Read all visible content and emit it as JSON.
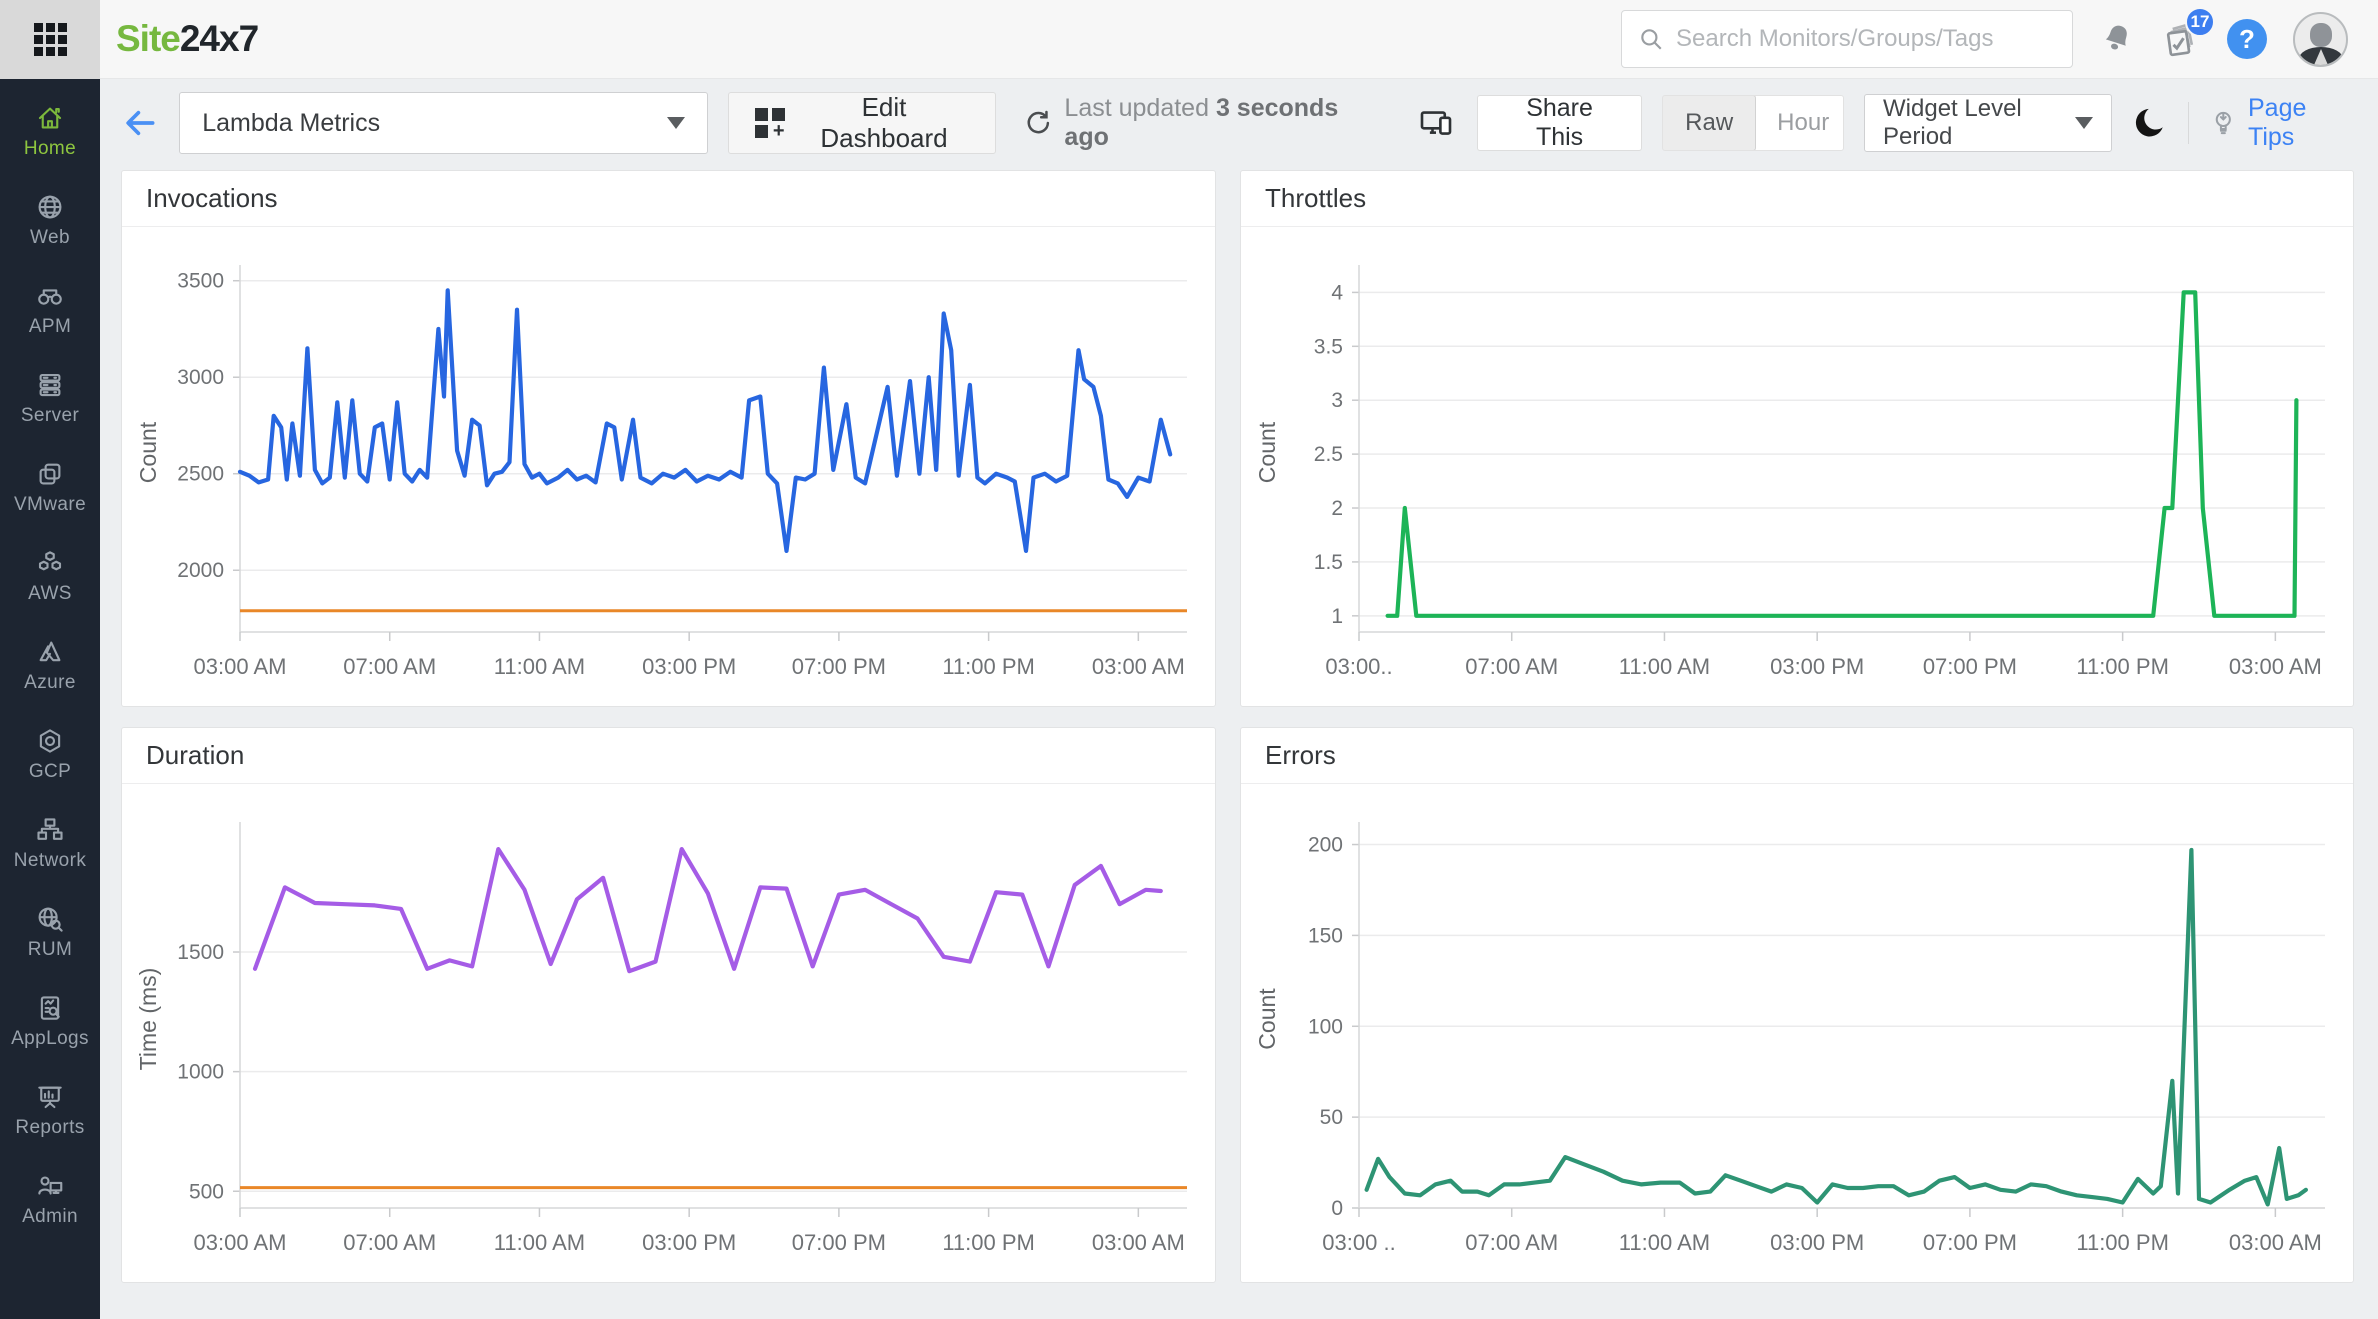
{
  "app": {
    "logo_prefix": "Site",
    "logo_suffix": "24x7"
  },
  "topbar": {
    "search_placeholder": "Search Monitors/Groups/Tags",
    "notification_count": "17",
    "help_label": "?"
  },
  "sidebar": {
    "items": [
      {
        "label": "Home",
        "icon": "home-icon",
        "active": true
      },
      {
        "label": "Web",
        "icon": "globe-icon",
        "active": false
      },
      {
        "label": "APM",
        "icon": "binoculars-icon",
        "active": false
      },
      {
        "label": "Server",
        "icon": "server-icon",
        "active": false
      },
      {
        "label": "VMware",
        "icon": "vmware-icon",
        "active": false
      },
      {
        "label": "AWS",
        "icon": "aws-cubes-icon",
        "active": false
      },
      {
        "label": "Azure",
        "icon": "azure-icon",
        "active": false
      },
      {
        "label": "GCP",
        "icon": "gcp-icon",
        "active": false
      },
      {
        "label": "Network",
        "icon": "network-icon",
        "active": false
      },
      {
        "label": "RUM",
        "icon": "rum-globe-search-icon",
        "active": false
      },
      {
        "label": "AppLogs",
        "icon": "applogs-icon",
        "active": false
      },
      {
        "label": "Reports",
        "icon": "reports-icon",
        "active": false
      },
      {
        "label": "Admin",
        "icon": "admin-icon",
        "active": false
      }
    ]
  },
  "toolbar": {
    "dashboard_name": "Lambda Metrics",
    "edit_button": "Edit Dashboard",
    "last_updated_prefix": "Last updated",
    "last_updated_value": "3 seconds ago",
    "share_button": "Share This",
    "granularity_options": [
      "Raw",
      "Hour"
    ],
    "granularity_selected": "Raw",
    "period_dropdown": "Widget Level Period",
    "page_tips": "Page Tips"
  },
  "colors": {
    "invocations_line": "#2766e0",
    "throttles_line": "#1db457",
    "duration_line": "#a55ce6",
    "errors_line": "#2e9474",
    "threshold_line": "#e98728",
    "sidebar_bg": "#1d2531",
    "accent_green": "#76b83f",
    "link_blue": "#3c82f4"
  },
  "chart_data": [
    {
      "type": "line",
      "title": "Invocations",
      "ylabel": "Count",
      "color": "#2766e0",
      "threshold": 1790,
      "threshold_color": "#e98728",
      "ylim": [
        1680,
        3540
      ],
      "yticks": [
        2000,
        2500,
        3000,
        3500
      ],
      "xlim": [
        0,
        25.3
      ],
      "xticks": [
        {
          "h": 0,
          "label": "03:00 AM"
        },
        {
          "h": 4,
          "label": "07:00 AM"
        },
        {
          "h": 8,
          "label": "11:00 AM"
        },
        {
          "h": 12,
          "label": "03:00 PM"
        },
        {
          "h": 16,
          "label": "07:00 PM"
        },
        {
          "h": 20,
          "label": "11:00 PM"
        },
        {
          "h": 24,
          "label": "03:00 AM"
        }
      ],
      "points": [
        [
          0,
          2510
        ],
        [
          0.25,
          2490
        ],
        [
          0.5,
          2455
        ],
        [
          0.75,
          2470
        ],
        [
          0.9,
          2800
        ],
        [
          1.1,
          2740
        ],
        [
          1.25,
          2470
        ],
        [
          1.4,
          2760
        ],
        [
          1.6,
          2490
        ],
        [
          1.8,
          3150
        ],
        [
          2,
          2520
        ],
        [
          2.2,
          2450
        ],
        [
          2.4,
          2480
        ],
        [
          2.6,
          2870
        ],
        [
          2.8,
          2480
        ],
        [
          3,
          2880
        ],
        [
          3.2,
          2500
        ],
        [
          3.4,
          2460
        ],
        [
          3.6,
          2740
        ],
        [
          3.8,
          2760
        ],
        [
          4,
          2470
        ],
        [
          4.2,
          2870
        ],
        [
          4.4,
          2500
        ],
        [
          4.6,
          2460
        ],
        [
          4.8,
          2520
        ],
        [
          5,
          2480
        ],
        [
          5.3,
          3250
        ],
        [
          5.45,
          2900
        ],
        [
          5.55,
          3450
        ],
        [
          5.8,
          2620
        ],
        [
          6,
          2490
        ],
        [
          6.2,
          2780
        ],
        [
          6.4,
          2750
        ],
        [
          6.6,
          2440
        ],
        [
          6.8,
          2500
        ],
        [
          7,
          2510
        ],
        [
          7.2,
          2560
        ],
        [
          7.4,
          3350
        ],
        [
          7.6,
          2550
        ],
        [
          7.8,
          2480
        ],
        [
          8,
          2500
        ],
        [
          8.2,
          2450
        ],
        [
          8.5,
          2480
        ],
        [
          8.75,
          2520
        ],
        [
          9,
          2470
        ],
        [
          9.25,
          2490
        ],
        [
          9.5,
          2455
        ],
        [
          9.8,
          2760
        ],
        [
          10,
          2740
        ],
        [
          10.2,
          2470
        ],
        [
          10.5,
          2780
        ],
        [
          10.7,
          2480
        ],
        [
          11,
          2450
        ],
        [
          11.3,
          2500
        ],
        [
          11.6,
          2480
        ],
        [
          11.9,
          2520
        ],
        [
          12.2,
          2460
        ],
        [
          12.5,
          2490
        ],
        [
          12.8,
          2470
        ],
        [
          13.1,
          2510
        ],
        [
          13.4,
          2480
        ],
        [
          13.6,
          2880
        ],
        [
          13.9,
          2900
        ],
        [
          14.1,
          2500
        ],
        [
          14.35,
          2450
        ],
        [
          14.6,
          2100
        ],
        [
          14.85,
          2480
        ],
        [
          15.1,
          2470
        ],
        [
          15.35,
          2500
        ],
        [
          15.6,
          3050
        ],
        [
          15.85,
          2520
        ],
        [
          16.2,
          2860
        ],
        [
          16.45,
          2480
        ],
        [
          16.7,
          2450
        ],
        [
          17,
          2700
        ],
        [
          17.3,
          2950
        ],
        [
          17.55,
          2490
        ],
        [
          17.9,
          2980
        ],
        [
          18.15,
          2500
        ],
        [
          18.4,
          3000
        ],
        [
          18.6,
          2520
        ],
        [
          18.8,
          3330
        ],
        [
          19,
          3140
        ],
        [
          19.2,
          2490
        ],
        [
          19.5,
          2960
        ],
        [
          19.7,
          2480
        ],
        [
          19.9,
          2450
        ],
        [
          20.2,
          2500
        ],
        [
          20.5,
          2480
        ],
        [
          20.7,
          2460
        ],
        [
          21,
          2100
        ],
        [
          21.2,
          2480
        ],
        [
          21.5,
          2500
        ],
        [
          21.8,
          2460
        ],
        [
          22.1,
          2490
        ],
        [
          22.4,
          3140
        ],
        [
          22.55,
          2990
        ],
        [
          22.8,
          2950
        ],
        [
          23,
          2800
        ],
        [
          23.2,
          2470
        ],
        [
          23.45,
          2450
        ],
        [
          23.7,
          2380
        ],
        [
          24,
          2480
        ],
        [
          24.3,
          2460
        ],
        [
          24.6,
          2780
        ],
        [
          24.85,
          2600
        ]
      ]
    },
    {
      "type": "line",
      "title": "Throttles",
      "ylabel": "Count",
      "color": "#1db457",
      "ylim": [
        0.85,
        4.18
      ],
      "yticks": [
        1,
        1.5,
        2,
        2.5,
        3,
        3.5,
        4
      ],
      "xlim": [
        0,
        25.3
      ],
      "xticks": [
        {
          "h": 0,
          "label": "03:00.."
        },
        {
          "h": 4,
          "label": "07:00 AM"
        },
        {
          "h": 8,
          "label": "11:00 AM"
        },
        {
          "h": 12,
          "label": "03:00 PM"
        },
        {
          "h": 16,
          "label": "07:00 PM"
        },
        {
          "h": 20,
          "label": "11:00 PM"
        },
        {
          "h": 24,
          "label": "03:00 AM"
        }
      ],
      "points": [
        [
          0.75,
          1
        ],
        [
          1,
          1
        ],
        [
          1.2,
          2
        ],
        [
          1.5,
          1
        ],
        [
          3,
          1
        ],
        [
          6,
          1
        ],
        [
          9,
          1
        ],
        [
          12,
          1
        ],
        [
          15,
          1
        ],
        [
          18,
          1
        ],
        [
          20.8,
          1
        ],
        [
          21.1,
          2
        ],
        [
          21.3,
          2
        ],
        [
          21.6,
          4
        ],
        [
          21.9,
          4
        ],
        [
          22.1,
          2
        ],
        [
          22.4,
          1
        ],
        [
          23,
          1
        ],
        [
          24.5,
          1
        ],
        [
          24.55,
          3
        ]
      ]
    },
    {
      "type": "line",
      "title": "Duration",
      "ylabel": "Time (ms)",
      "color": "#a55ce6",
      "threshold": 515,
      "threshold_color": "#e98728",
      "ylim": [
        430,
        2010
      ],
      "yticks": [
        500,
        1000,
        1500
      ],
      "xlim": [
        0,
        25.3
      ],
      "xticks": [
        {
          "h": 0,
          "label": "03:00 AM"
        },
        {
          "h": 4,
          "label": "07:00 AM"
        },
        {
          "h": 8,
          "label": "11:00 AM"
        },
        {
          "h": 12,
          "label": "03:00 PM"
        },
        {
          "h": 16,
          "label": "07:00 PM"
        },
        {
          "h": 20,
          "label": "11:00 PM"
        },
        {
          "h": 24,
          "label": "03:00 AM"
        }
      ],
      "points": [
        [
          0.4,
          1430
        ],
        [
          1.2,
          1770
        ],
        [
          2,
          1705
        ],
        [
          2.8,
          1700
        ],
        [
          3.6,
          1695
        ],
        [
          4.3,
          1680
        ],
        [
          5,
          1430
        ],
        [
          5.6,
          1465
        ],
        [
          6.2,
          1440
        ],
        [
          6.9,
          1930
        ],
        [
          7.6,
          1760
        ],
        [
          8.3,
          1450
        ],
        [
          9,
          1720
        ],
        [
          9.7,
          1810
        ],
        [
          10.4,
          1420
        ],
        [
          11.1,
          1460
        ],
        [
          11.8,
          1930
        ],
        [
          12.5,
          1745
        ],
        [
          13.2,
          1430
        ],
        [
          13.9,
          1770
        ],
        [
          14.6,
          1765
        ],
        [
          15.3,
          1440
        ],
        [
          16,
          1740
        ],
        [
          16.7,
          1760
        ],
        [
          17.4,
          1700
        ],
        [
          18.1,
          1640
        ],
        [
          18.8,
          1480
        ],
        [
          19.5,
          1460
        ],
        [
          20.2,
          1750
        ],
        [
          20.9,
          1740
        ],
        [
          21.6,
          1440
        ],
        [
          22.3,
          1780
        ],
        [
          23,
          1860
        ],
        [
          23.5,
          1700
        ],
        [
          24.2,
          1760
        ],
        [
          24.6,
          1755
        ]
      ]
    },
    {
      "type": "line",
      "title": "Errors",
      "ylabel": "Count",
      "color": "#2e9474",
      "ylim": [
        0,
        208
      ],
      "yticks": [
        0,
        50,
        100,
        150,
        200
      ],
      "xlim": [
        0,
        25.3
      ],
      "xticks": [
        {
          "h": 0,
          "label": "03:00 .."
        },
        {
          "h": 4,
          "label": "07:00 AM"
        },
        {
          "h": 8,
          "label": "11:00 AM"
        },
        {
          "h": 12,
          "label": "03:00 PM"
        },
        {
          "h": 16,
          "label": "07:00 PM"
        },
        {
          "h": 20,
          "label": "11:00 PM"
        },
        {
          "h": 24,
          "label": "03:00 AM"
        }
      ],
      "points": [
        [
          0.2,
          10
        ],
        [
          0.5,
          27
        ],
        [
          0.8,
          17
        ],
        [
          1.2,
          8
        ],
        [
          1.6,
          7
        ],
        [
          2,
          13
        ],
        [
          2.4,
          15
        ],
        [
          2.7,
          9
        ],
        [
          3.1,
          9
        ],
        [
          3.4,
          7
        ],
        [
          3.8,
          13
        ],
        [
          4.2,
          13
        ],
        [
          4.6,
          14
        ],
        [
          5,
          15
        ],
        [
          5.4,
          28
        ],
        [
          5.9,
          24
        ],
        [
          6.4,
          20
        ],
        [
          6.9,
          15
        ],
        [
          7.4,
          13
        ],
        [
          7.9,
          14
        ],
        [
          8.4,
          14
        ],
        [
          8.8,
          8
        ],
        [
          9.2,
          9
        ],
        [
          9.6,
          18
        ],
        [
          10,
          15
        ],
        [
          10.4,
          12
        ],
        [
          10.8,
          9
        ],
        [
          11.2,
          13
        ],
        [
          11.6,
          11
        ],
        [
          12,
          3
        ],
        [
          12.4,
          13
        ],
        [
          12.8,
          11
        ],
        [
          13.2,
          11
        ],
        [
          13.6,
          12
        ],
        [
          14,
          12
        ],
        [
          14.4,
          7
        ],
        [
          14.8,
          9
        ],
        [
          15.2,
          15
        ],
        [
          15.6,
          17
        ],
        [
          16,
          11
        ],
        [
          16.4,
          13
        ],
        [
          16.8,
          10
        ],
        [
          17.2,
          9
        ],
        [
          17.6,
          13
        ],
        [
          18,
          12
        ],
        [
          18.4,
          9
        ],
        [
          18.8,
          7
        ],
        [
          19.2,
          6
        ],
        [
          19.6,
          5
        ],
        [
          20,
          3
        ],
        [
          20.4,
          16
        ],
        [
          20.8,
          8
        ],
        [
          21,
          12
        ],
        [
          21.3,
          70
        ],
        [
          21.45,
          8
        ],
        [
          21.8,
          197
        ],
        [
          22,
          5
        ],
        [
          22.3,
          3
        ],
        [
          22.8,
          10
        ],
        [
          23.2,
          15
        ],
        [
          23.5,
          17
        ],
        [
          23.8,
          2
        ],
        [
          24.1,
          33
        ],
        [
          24.3,
          5
        ],
        [
          24.6,
          7
        ],
        [
          24.8,
          10
        ]
      ]
    }
  ]
}
